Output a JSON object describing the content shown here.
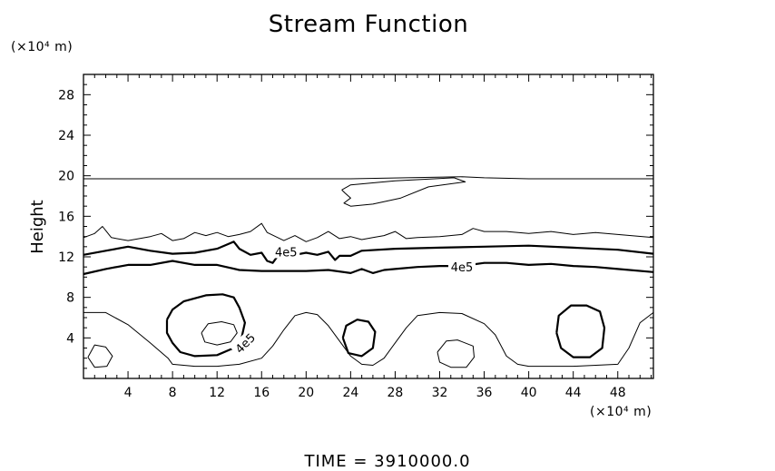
{
  "chart_data": {
    "type": "contour",
    "title": "Stream Function",
    "ylabel": "Height",
    "y_unit": "(×10⁴ m)",
    "x_unit": "(×10⁴ m)",
    "xlim": [
      0,
      51.2
    ],
    "ylim": [
      0,
      30
    ],
    "x_ticks": [
      4,
      8,
      12,
      16,
      20,
      24,
      28,
      32,
      36,
      40,
      44,
      48
    ],
    "y_ticks": [
      4,
      8,
      12,
      16,
      20,
      24,
      28
    ],
    "contour_label_text": "4e5",
    "contours": [
      {
        "level": "thin",
        "points": [
          [
            0,
            19.7
          ],
          [
            12,
            19.7
          ],
          [
            24,
            19.7
          ],
          [
            34,
            19.9
          ],
          [
            36,
            19.8
          ],
          [
            40,
            19.7
          ],
          [
            51.2,
            19.7
          ]
        ]
      },
      {
        "level": "thin",
        "points": [
          [
            23.2,
            18.6
          ],
          [
            24,
            19.1
          ],
          [
            28,
            19.5
          ],
          [
            33.3,
            19.8
          ],
          [
            34.3,
            19.4
          ],
          [
            31,
            18.9
          ],
          [
            28.5,
            17.8
          ],
          [
            26,
            17.2
          ],
          [
            24,
            17.0
          ],
          [
            23.4,
            17.3
          ],
          [
            24,
            17.8
          ],
          [
            23.5,
            18.3
          ],
          [
            23.2,
            18.6
          ]
        ]
      },
      {
        "level": "thin",
        "points": [
          [
            0,
            13.9
          ],
          [
            1,
            14.3
          ],
          [
            1.7,
            15.0
          ],
          [
            2.5,
            13.9
          ],
          [
            4,
            13.6
          ],
          [
            6,
            14.0
          ],
          [
            7,
            14.3
          ],
          [
            8,
            13.6
          ],
          [
            9,
            13.8
          ],
          [
            10,
            14.4
          ],
          [
            11,
            14.1
          ],
          [
            12,
            14.4
          ],
          [
            13,
            14.0
          ],
          [
            14,
            14.2
          ],
          [
            15,
            14.5
          ],
          [
            16,
            15.3
          ],
          [
            16.5,
            14.4
          ],
          [
            18,
            13.6
          ],
          [
            19,
            14.1
          ],
          [
            20,
            13.5
          ],
          [
            21,
            13.9
          ],
          [
            22,
            14.5
          ],
          [
            23,
            13.8
          ],
          [
            24,
            14.0
          ],
          [
            25,
            13.7
          ],
          [
            26,
            13.9
          ],
          [
            27,
            14.1
          ],
          [
            28,
            14.5
          ],
          [
            29,
            13.8
          ],
          [
            30,
            13.9
          ],
          [
            32,
            14.0
          ],
          [
            34,
            14.2
          ],
          [
            35,
            14.8
          ],
          [
            36,
            14.5
          ],
          [
            38,
            14.5
          ],
          [
            40,
            14.3
          ],
          [
            42,
            14.5
          ],
          [
            44,
            14.2
          ],
          [
            46,
            14.4
          ],
          [
            48,
            14.2
          ],
          [
            51.2,
            13.9
          ]
        ]
      },
      {
        "level": "bold",
        "points": [
          [
            0,
            12.2
          ],
          [
            2,
            12.6
          ],
          [
            4,
            13.0
          ],
          [
            6,
            12.6
          ],
          [
            8,
            12.3
          ],
          [
            10,
            12.4
          ],
          [
            12,
            12.8
          ],
          [
            13.5,
            13.5
          ],
          [
            14,
            12.8
          ],
          [
            15,
            12.2
          ],
          [
            16,
            12.4
          ],
          [
            16.5,
            11.6
          ],
          [
            17,
            11.4
          ],
          [
            17.6,
            12.3
          ],
          [
            18,
            12.7
          ],
          [
            19,
            12.2
          ],
          [
            20,
            12.4
          ],
          [
            21,
            12.2
          ],
          [
            22,
            12.5
          ],
          [
            22.6,
            11.7
          ],
          [
            23,
            12.1
          ],
          [
            24,
            12.1
          ],
          [
            25,
            12.6
          ],
          [
            28,
            12.8
          ],
          [
            32,
            12.9
          ],
          [
            36,
            13.0
          ],
          [
            40,
            13.1
          ],
          [
            44,
            12.9
          ],
          [
            48,
            12.7
          ],
          [
            51.2,
            12.3
          ]
        ]
      },
      {
        "level": "bold",
        "points": [
          [
            0,
            10.3
          ],
          [
            2,
            10.8
          ],
          [
            4,
            11.2
          ],
          [
            6,
            11.2
          ],
          [
            8,
            11.6
          ],
          [
            10,
            11.2
          ],
          [
            12,
            11.2
          ],
          [
            14,
            10.7
          ],
          [
            16,
            10.6
          ],
          [
            18,
            10.6
          ],
          [
            20,
            10.6
          ],
          [
            22,
            10.7
          ],
          [
            24,
            10.4
          ],
          [
            25,
            10.8
          ],
          [
            26,
            10.4
          ],
          [
            27,
            10.7
          ],
          [
            28,
            10.8
          ],
          [
            30,
            11.0
          ],
          [
            32,
            11.1
          ],
          [
            34,
            11.1
          ],
          [
            36,
            11.4
          ],
          [
            38,
            11.4
          ],
          [
            40,
            11.2
          ],
          [
            42,
            11.3
          ],
          [
            44,
            11.1
          ],
          [
            46,
            11.0
          ],
          [
            48,
            10.8
          ],
          [
            51.2,
            10.5
          ]
        ]
      },
      {
        "level": "thin",
        "points": [
          [
            0,
            6.5
          ],
          [
            2,
            6.5
          ],
          [
            4,
            5.3
          ],
          [
            6,
            3.5
          ],
          [
            7.6,
            2.0
          ],
          [
            8,
            1.4
          ],
          [
            10,
            1.2
          ],
          [
            12,
            1.2
          ],
          [
            14,
            1.4
          ],
          [
            16,
            2.0
          ],
          [
            17,
            3.2
          ],
          [
            18,
            4.8
          ],
          [
            19,
            6.2
          ],
          [
            20,
            6.5
          ],
          [
            21,
            6.3
          ],
          [
            22,
            5.2
          ],
          [
            23,
            3.7
          ],
          [
            24,
            2.2
          ],
          [
            25,
            1.4
          ],
          [
            26,
            1.3
          ],
          [
            27,
            2.0
          ],
          [
            28,
            3.5
          ],
          [
            29,
            5.0
          ],
          [
            30,
            6.2
          ],
          [
            32,
            6.5
          ],
          [
            34,
            6.4
          ],
          [
            36,
            5.4
          ],
          [
            37,
            4.3
          ],
          [
            38,
            2.2
          ],
          [
            39,
            1.4
          ],
          [
            40,
            1.2
          ],
          [
            44,
            1.2
          ],
          [
            48,
            1.4
          ],
          [
            49,
            3.0
          ],
          [
            50,
            5.5
          ],
          [
            51.2,
            6.5
          ]
        ]
      },
      {
        "level": "bold",
        "points": [
          [
            7.5,
            5.8
          ],
          [
            8,
            6.8
          ],
          [
            9,
            7.6
          ],
          [
            11,
            8.2
          ],
          [
            12.5,
            8.3
          ],
          [
            13.5,
            8.0
          ],
          [
            14,
            7.0
          ],
          [
            14.5,
            5.5
          ],
          [
            14.2,
            4.0
          ],
          [
            13.5,
            3.0
          ],
          [
            12,
            2.3
          ],
          [
            10,
            2.2
          ],
          [
            8.7,
            2.6
          ],
          [
            8,
            3.5
          ],
          [
            7.5,
            4.5
          ],
          [
            7.5,
            5.8
          ]
        ]
      },
      {
        "level": "thin",
        "points": [
          [
            10.6,
            4.5
          ],
          [
            11.2,
            5.4
          ],
          [
            12.4,
            5.6
          ],
          [
            13.5,
            5.3
          ],
          [
            13.8,
            4.5
          ],
          [
            13.2,
            3.6
          ],
          [
            12,
            3.3
          ],
          [
            10.9,
            3.6
          ],
          [
            10.6,
            4.5
          ]
        ]
      },
      {
        "level": "bold",
        "points": [
          [
            23.3,
            4.0
          ],
          [
            23.6,
            5.2
          ],
          [
            24.6,
            5.8
          ],
          [
            25.6,
            5.6
          ],
          [
            26.2,
            4.6
          ],
          [
            26.0,
            3.0
          ],
          [
            25.0,
            2.2
          ],
          [
            23.8,
            2.5
          ],
          [
            23.3,
            4.0
          ]
        ]
      },
      {
        "level": "bold",
        "points": [
          [
            42.5,
            4.5
          ],
          [
            42.7,
            6.2
          ],
          [
            43.8,
            7.2
          ],
          [
            45.2,
            7.2
          ],
          [
            46.4,
            6.6
          ],
          [
            46.8,
            5.0
          ],
          [
            46.6,
            3.0
          ],
          [
            45.5,
            2.1
          ],
          [
            44.0,
            2.1
          ],
          [
            42.9,
            3.0
          ],
          [
            42.5,
            4.5
          ]
        ]
      },
      {
        "level": "thin",
        "points": [
          [
            0.4,
            2.1
          ],
          [
            1,
            3.3
          ],
          [
            2,
            3.1
          ],
          [
            2.6,
            2.2
          ],
          [
            2.1,
            1.2
          ],
          [
            1,
            1.1
          ],
          [
            0.4,
            2.1
          ]
        ]
      },
      {
        "level": "thin",
        "points": [
          [
            31.8,
            2.6
          ],
          [
            32.6,
            3.7
          ],
          [
            33.6,
            3.8
          ],
          [
            35,
            3.2
          ],
          [
            35.1,
            2.1
          ],
          [
            34.4,
            1.1
          ],
          [
            33,
            1.1
          ],
          [
            32,
            1.6
          ],
          [
            31.8,
            2.6
          ]
        ]
      }
    ],
    "contour_labels": [
      {
        "text": "4e5",
        "x": 18.2,
        "y": 12.5,
        "rotate": 0
      },
      {
        "text": "4e5",
        "x": 34.0,
        "y": 11.0,
        "rotate": 0
      },
      {
        "text": "4e5",
        "x": 14.5,
        "y": 3.5,
        "rotate": -45
      }
    ]
  },
  "footer": {
    "time_label": "TIME  =  3910000.0"
  }
}
